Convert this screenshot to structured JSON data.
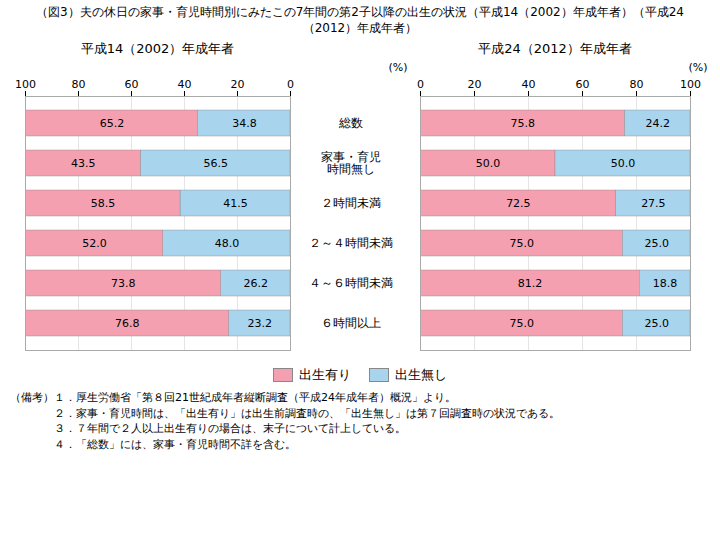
{
  "chart_data": [
    {
      "type": "bar",
      "orientation": "horizontal",
      "stacked": true,
      "title": "（図3）夫の休日の家事・育児時間別にみたこの7年間の第2子以降の出生の状況（平成14（2002）年成年者）（平成24（2012）年成年者）",
      "subtitle": "平成14（2002）年成年者",
      "xlabel": "(%)",
      "categories": [
        "総数",
        "家事・育児\n時間無し",
        "２時間未満",
        "２～４時間未満",
        "４～６時間未満",
        "６時間以上"
      ],
      "series": [
        {
          "name": "出生無し",
          "color": "#a8d4ee",
          "values": [
            34.8,
            56.5,
            41.5,
            48.0,
            26.2,
            23.2
          ],
          "value_labels": [
            "34.8",
            "56.5",
            "41.5",
            "48.0",
            "26.2",
            "23.2"
          ]
        },
        {
          "name": "出生有り",
          "color": "#f4a0b0",
          "values": [
            65.2,
            43.5,
            58.5,
            52.0,
            73.8,
            76.8
          ],
          "value_labels": [
            "65.2",
            "43.5",
            "58.5",
            "52.0",
            "73.8",
            "76.8"
          ]
        }
      ],
      "xlim": [
        100,
        0
      ],
      "xticks": [
        0,
        20,
        40,
        60,
        80,
        100
      ],
      "grid": true,
      "data_labels": true,
      "annotations": [
        "（備考）１．厚生労働省「第８回21世紀成年者縦断調査（平成24年成年者）概況」より。",
        "　　　　２．家事・育児時間は、「出生有り」は出生前調査時の、「出生無し」は第７回調査時の状況である。",
        "　　　　３．７年間で２人以上出生有りの場合は、末子について計上している。",
        "　　　　４．「総数」には、家事・育児時間不詳を含む。"
      ]
    },
    {
      "type": "bar",
      "orientation": "horizontal",
      "stacked": true,
      "subtitle": "平成24（2012）年成年者",
      "xlabel": "(%)",
      "categories": [
        "総数",
        "家事・育児\n時間無し",
        "２時間未満",
        "２～４時間未満",
        "４～６時間未満",
        "６時間以上"
      ],
      "series": [
        {
          "name": "出生有り",
          "color": "#f4a0b0",
          "values": [
            75.8,
            50.0,
            72.5,
            75.0,
            81.2,
            75.0
          ],
          "value_labels": [
            "75.8",
            "50.0",
            "72.5",
            "75.0",
            "81.2",
            "75.0"
          ]
        },
        {
          "name": "出生無し",
          "color": "#a8d4ee",
          "values": [
            24.2,
            50.0,
            27.5,
            25.0,
            18.8,
            25.0
          ],
          "value_labels": [
            "24.2",
            "50.0",
            "27.5",
            "25.0",
            "18.8",
            "25.0"
          ]
        }
      ],
      "xlim": [
        0,
        100
      ],
      "xticks": [
        0,
        20,
        40,
        60,
        80,
        100
      ],
      "grid": true,
      "data_labels": true,
      "tick_labels": "x",
      "legend": "bottom"
    }
  ]
}
